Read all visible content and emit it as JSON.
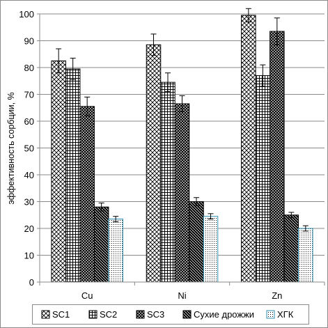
{
  "chart_data": {
    "type": "bar",
    "categories": [
      "Cu",
      "Ni",
      "Zn"
    ],
    "ylabel": "эффективность сорбции, %",
    "ylim": [
      0,
      100
    ],
    "yticks": [
      0,
      10,
      20,
      30,
      40,
      50,
      60,
      70,
      80,
      90,
      100
    ],
    "legend_position": "bottom",
    "error_bars": true,
    "series": [
      {
        "name": "SC1",
        "values": [
          82.5,
          88.5,
          99.5
        ],
        "errors": [
          4.5,
          4.0,
          2.5
        ],
        "pattern": "diagonal-cross"
      },
      {
        "name": "SC2",
        "values": [
          79.5,
          74.5,
          77.0
        ],
        "errors": [
          4.0,
          3.5,
          4.0
        ],
        "pattern": "grid"
      },
      {
        "name": "SC3",
        "values": [
          65.5,
          66.5,
          93.5
        ],
        "errors": [
          3.5,
          3.0,
          5.0
        ],
        "pattern": "dark-diagonal-cross"
      },
      {
        "name": "Сухие дрожжи",
        "values": [
          28.0,
          30.0,
          25.0
        ],
        "errors": [
          1.5,
          1.5,
          1.0
        ],
        "pattern": "dark-checker"
      },
      {
        "name": "ХГК",
        "values": [
          23.5,
          24.5,
          20.0
        ],
        "errors": [
          1.0,
          1.0,
          1.0
        ],
        "pattern": "dots"
      }
    ]
  }
}
